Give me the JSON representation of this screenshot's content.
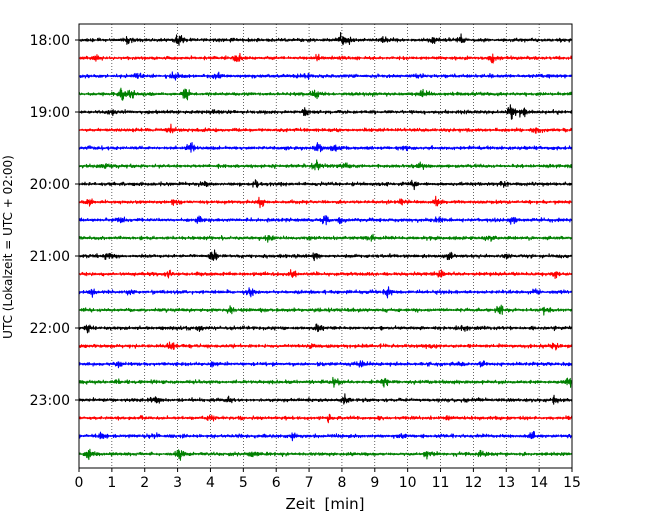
{
  "chart_data": {
    "type": "line",
    "title": "",
    "xlabel": "Zeit  [min]",
    "ylabel": "UTC (Lokalzeit = UTC + 02:00)",
    "xlim": [
      0,
      15
    ],
    "x_ticks": [
      "0",
      "1",
      "2",
      "3",
      "4",
      "5",
      "6",
      "7",
      "8",
      "9",
      "10",
      "11",
      "12",
      "13",
      "14",
      "15"
    ],
    "y_tick_labels": [
      {
        "row": 0,
        "label": "18:00"
      },
      {
        "row": 4,
        "label": "19:00"
      },
      {
        "row": 8,
        "label": "20:00"
      },
      {
        "row": 12,
        "label": "21:00"
      },
      {
        "row": 16,
        "label": "22:00"
      },
      {
        "row": 20,
        "label": "23:00"
      }
    ],
    "row_colors": [
      "#000000",
      "#ff0000",
      "#0000ff",
      "#008000"
    ],
    "grid": "vertical dotted lines at each minute",
    "traces": [
      {
        "start_time": "18:00",
        "color": "#000000",
        "events": [
          [
            1.5,
            0.9
          ],
          [
            3.05,
            1.1
          ],
          [
            8.0,
            1.0
          ],
          [
            8.2,
            0.9
          ],
          [
            9.3,
            0.8
          ],
          [
            10.8,
            0.9
          ],
          [
            11.6,
            0.7
          ]
        ]
      },
      {
        "start_time": "18:15",
        "color": "#ff0000",
        "events": [
          [
            0.5,
            0.6
          ],
          [
            4.8,
            0.8
          ],
          [
            7.3,
            0.6
          ],
          [
            12.6,
            0.9
          ]
        ]
      },
      {
        "start_time": "18:30",
        "color": "#0000ff",
        "events": [
          [
            1.8,
            0.6
          ],
          [
            2.9,
            0.7
          ],
          [
            4.2,
            0.6
          ],
          [
            7.0,
            0.6
          ],
          [
            10.3,
            0.5
          ]
        ]
      },
      {
        "start_time": "18:45",
        "color": "#008000",
        "events": [
          [
            1.3,
            0.9
          ],
          [
            1.6,
            0.7
          ],
          [
            3.25,
            1.3
          ],
          [
            7.2,
            0.8
          ],
          [
            10.5,
            0.6
          ]
        ]
      },
      {
        "start_time": "19:00",
        "color": "#000000",
        "events": [
          [
            1.0,
            0.5
          ],
          [
            6.9,
            0.7
          ],
          [
            13.15,
            2.0
          ],
          [
            13.5,
            0.9
          ]
        ]
      },
      {
        "start_time": "19:15",
        "color": "#ff0000",
        "events": [
          [
            2.8,
            0.6
          ],
          [
            13.9,
            0.5
          ]
        ]
      },
      {
        "start_time": "19:30",
        "color": "#0000ff",
        "events": [
          [
            3.4,
            0.7
          ],
          [
            7.3,
            1.1
          ],
          [
            7.8,
            0.6
          ],
          [
            9.9,
            0.5
          ]
        ]
      },
      {
        "start_time": "19:45",
        "color": "#008000",
        "events": [
          [
            0.8,
            0.5
          ],
          [
            7.2,
            0.8
          ],
          [
            8.1,
            0.6
          ],
          [
            10.4,
            0.6
          ]
        ]
      },
      {
        "start_time": "20:00",
        "color": "#000000",
        "events": [
          [
            3.8,
            0.6
          ],
          [
            5.4,
            0.6
          ],
          [
            10.2,
            0.6
          ],
          [
            12.9,
            0.5
          ]
        ]
      },
      {
        "start_time": "20:15",
        "color": "#ff0000",
        "events": [
          [
            0.3,
            0.5
          ],
          [
            2.9,
            0.5
          ],
          [
            5.5,
            0.6
          ],
          [
            9.8,
            0.5
          ],
          [
            10.9,
            0.8
          ]
        ]
      },
      {
        "start_time": "20:30",
        "color": "#0000ff",
        "events": [
          [
            1.3,
            0.6
          ],
          [
            3.7,
            0.8
          ],
          [
            7.5,
            0.9
          ],
          [
            8.0,
            0.6
          ],
          [
            11.0,
            0.6
          ],
          [
            13.2,
            0.6
          ]
        ]
      },
      {
        "start_time": "20:45",
        "color": "#008000",
        "events": [
          [
            5.8,
            0.8
          ],
          [
            8.9,
            0.6
          ],
          [
            12.5,
            0.5
          ]
        ]
      },
      {
        "start_time": "21:00",
        "color": "#000000",
        "events": [
          [
            0.9,
            0.6
          ],
          [
            4.1,
            1.1
          ],
          [
            7.2,
            0.8
          ],
          [
            11.3,
            0.6
          ],
          [
            13.0,
            0.6
          ]
        ]
      },
      {
        "start_time": "21:15",
        "color": "#ff0000",
        "events": [
          [
            2.7,
            0.5
          ],
          [
            6.5,
            0.6
          ],
          [
            11.0,
            0.6
          ],
          [
            14.5,
            0.6
          ]
        ]
      },
      {
        "start_time": "21:30",
        "color": "#0000ff",
        "events": [
          [
            0.4,
            0.7
          ],
          [
            1.6,
            0.5
          ],
          [
            5.2,
            0.8
          ],
          [
            9.4,
            0.5
          ],
          [
            13.9,
            0.5
          ]
        ]
      },
      {
        "start_time": "21:45",
        "color": "#008000",
        "events": [
          [
            4.6,
            0.5
          ],
          [
            12.8,
            0.8
          ],
          [
            14.2,
            0.6
          ]
        ]
      },
      {
        "start_time": "22:00",
        "color": "#000000",
        "events": [
          [
            0.3,
            0.5
          ],
          [
            3.7,
            0.5
          ],
          [
            7.3,
            0.8
          ],
          [
            11.7,
            0.5
          ]
        ]
      },
      {
        "start_time": "22:15",
        "color": "#ff0000",
        "events": [
          [
            2.8,
            0.8
          ],
          [
            7.1,
            0.5
          ],
          [
            10.7,
            0.5
          ],
          [
            14.5,
            0.8
          ]
        ]
      },
      {
        "start_time": "22:30",
        "color": "#0000ff",
        "events": [
          [
            1.2,
            0.5
          ],
          [
            4.1,
            0.5
          ],
          [
            8.6,
            0.5
          ],
          [
            11.6,
            0.7
          ],
          [
            12.3,
            0.6
          ]
        ]
      },
      {
        "start_time": "22:45",
        "color": "#008000",
        "events": [
          [
            1.2,
            0.5
          ],
          [
            7.8,
            0.8
          ],
          [
            9.3,
            0.6
          ],
          [
            14.9,
            0.7
          ]
        ]
      },
      {
        "start_time": "23:00",
        "color": "#000000",
        "events": [
          [
            2.2,
            0.6
          ],
          [
            2.4,
            0.5
          ],
          [
            4.6,
            0.5
          ],
          [
            8.1,
            0.9
          ],
          [
            14.5,
            0.6
          ]
        ]
      },
      {
        "start_time": "23:15",
        "color": "#ff0000",
        "events": [
          [
            1.9,
            0.5
          ],
          [
            4.0,
            0.6
          ],
          [
            7.6,
            0.5
          ],
          [
            11.3,
            0.5
          ]
        ]
      },
      {
        "start_time": "23:30",
        "color": "#0000ff",
        "events": [
          [
            0.7,
            0.5
          ],
          [
            2.3,
            0.5
          ],
          [
            6.5,
            0.8
          ],
          [
            9.8,
            0.5
          ],
          [
            13.8,
            0.8
          ]
        ]
      },
      {
        "start_time": "23:45",
        "color": "#008000",
        "events": [
          [
            0.3,
            0.8
          ],
          [
            3.1,
            1.5
          ],
          [
            5.3,
            0.8
          ],
          [
            10.6,
            0.6
          ],
          [
            12.2,
            0.5
          ]
        ]
      }
    ]
  }
}
